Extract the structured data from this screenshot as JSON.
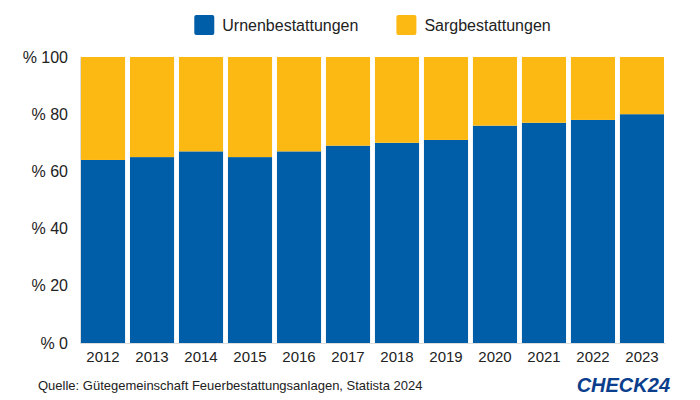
{
  "chart_data": {
    "type": "bar",
    "stacked": true,
    "legend": "top",
    "categories": [
      "2012",
      "2013",
      "2014",
      "2015",
      "2016",
      "2017",
      "2018",
      "2019",
      "2020",
      "2021",
      "2022",
      "2023"
    ],
    "series": [
      {
        "name": "Urnenbestattungen",
        "color": "#005ea8",
        "values": [
          64,
          65,
          67,
          65,
          67,
          69,
          70,
          71,
          76,
          77,
          78,
          80
        ]
      },
      {
        "name": "Sargbestattungen",
        "color": "#fdb913",
        "values": [
          36,
          35,
          33,
          35,
          33,
          31,
          30,
          29,
          24,
          23,
          22,
          20
        ]
      }
    ],
    "ylim": [
      0,
      100
    ],
    "yticks": [
      {
        "value": 0,
        "label": "% 0"
      },
      {
        "value": 20,
        "label": "% 20"
      },
      {
        "value": 40,
        "label": "% 40"
      },
      {
        "value": 60,
        "label": "% 60"
      },
      {
        "value": 80,
        "label": "% 80"
      },
      {
        "value": 100,
        "label": "% 100"
      }
    ],
    "grid": false,
    "annotations": [
      "Quelle: Gütegemeinschaft Feuerbestattungsanlagen, Statista 2024",
      "CHECK24"
    ]
  }
}
